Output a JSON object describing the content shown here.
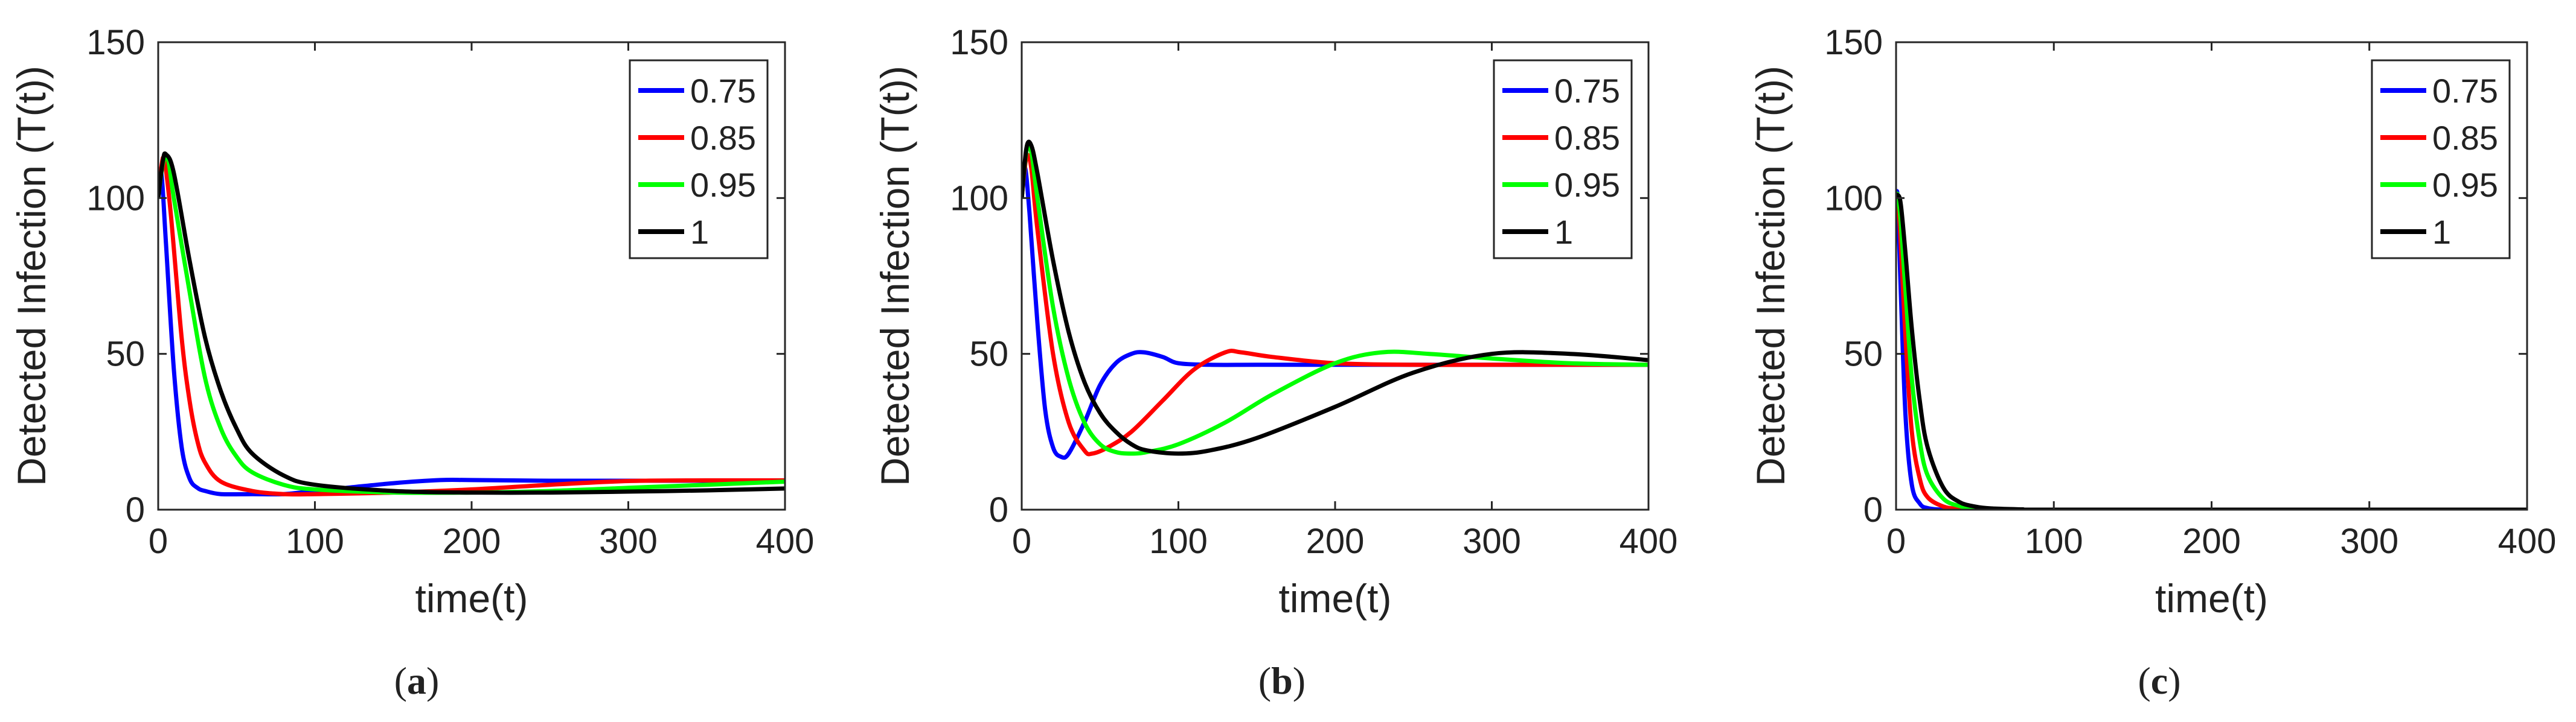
{
  "chart_data": [
    {
      "type": "line",
      "panel_label": "a",
      "caption": {
        "open": "(",
        "letter": "a",
        "close": ")"
      },
      "xlabel": "time(t)",
      "ylabel": "Detected Infection (T(t))",
      "xlim": [
        0,
        400
      ],
      "ylim": [
        0,
        150
      ],
      "xticks": [
        "0",
        "100",
        "200",
        "300",
        "400"
      ],
      "yticks": [
        "0",
        "50",
        "100",
        "150"
      ],
      "legend_position": "top-right",
      "series": [
        {
          "name": "0.75",
          "color": "#0000ff",
          "x": [
            0,
            2,
            5,
            10,
            15,
            20,
            25,
            30,
            40,
            60,
            80,
            100,
            120,
            150,
            180,
            200,
            250,
            300,
            350,
            400
          ],
          "y": [
            100,
            108,
            85,
            45,
            20,
            10,
            7,
            6,
            5,
            5,
            5,
            6,
            7,
            8.5,
            9.5,
            9.5,
            9.3,
            9.3,
            9.3,
            9.3
          ]
        },
        {
          "name": "0.85",
          "color": "#ff0000",
          "x": [
            0,
            2,
            4,
            8,
            15,
            20,
            25,
            30,
            40,
            60,
            80,
            100,
            150,
            200,
            250,
            300,
            350,
            400
          ],
          "y": [
            100,
            110,
            112,
            95,
            55,
            35,
            22,
            15,
            9,
            6,
            5,
            5,
            5.5,
            6.5,
            8,
            9.2,
            9.4,
            9.4
          ]
        },
        {
          "name": "0.95",
          "color": "#00ff00",
          "x": [
            0,
            3,
            6,
            10,
            20,
            30,
            40,
            50,
            60,
            80,
            100,
            150,
            200,
            250,
            300,
            350,
            400
          ],
          "y": [
            100,
            111,
            113,
            100,
            70,
            42,
            26,
            17,
            12,
            8,
            6.5,
            5.5,
            5.5,
            6,
            7,
            8,
            9
          ]
        },
        {
          "name": "1",
          "color": "#000000",
          "x": [
            0,
            3,
            5,
            10,
            20,
            30,
            40,
            50,
            60,
            80,
            100,
            150,
            200,
            250,
            300,
            350,
            400
          ],
          "y": [
            100,
            112,
            114,
            108,
            80,
            55,
            38,
            26,
            18,
            11,
            8,
            6,
            5.5,
            5.5,
            5.8,
            6.2,
            6.8
          ]
        }
      ]
    },
    {
      "type": "line",
      "panel_label": "b",
      "caption": {
        "open": "(",
        "letter": "b",
        "close": ")"
      },
      "xlabel": "time(t)",
      "ylabel": "Detected Infection (T(t))",
      "xlim": [
        0,
        400
      ],
      "ylim": [
        0,
        150
      ],
      "xticks": [
        "0",
        "100",
        "200",
        "300",
        "400"
      ],
      "yticks": [
        "0",
        "50",
        "100",
        "150"
      ],
      "legend_position": "top-right",
      "series": [
        {
          "name": "0.75",
          "color": "#0000ff",
          "x": [
            0,
            2,
            5,
            10,
            15,
            20,
            25,
            30,
            40,
            50,
            60,
            70,
            78,
            90,
            100,
            120,
            150,
            200,
            300,
            400
          ],
          "y": [
            100,
            110,
            95,
            60,
            32,
            20,
            17,
            18,
            28,
            40,
            47,
            50,
            50.5,
            49,
            47,
            46.5,
            46.5,
            46.5,
            46.5,
            46.5
          ]
        },
        {
          "name": "0.85",
          "color": "#ff0000",
          "x": [
            0,
            3,
            6,
            10,
            20,
            30,
            40,
            45,
            55,
            70,
            90,
            110,
            130,
            140,
            160,
            200,
            250,
            300,
            400
          ],
          "y": [
            100,
            113,
            110,
            90,
            50,
            28,
            19,
            18,
            20,
            25,
            35,
            45,
            50.5,
            50.5,
            49,
            47,
            46.5,
            46.5,
            46.5
          ]
        },
        {
          "name": "0.95",
          "color": "#00ff00",
          "x": [
            0,
            3,
            6,
            10,
            20,
            30,
            40,
            50,
            60,
            70,
            80,
            100,
            130,
            160,
            200,
            230,
            260,
            300,
            350,
            400
          ],
          "y": [
            100,
            115,
            115,
            100,
            65,
            42,
            28,
            21,
            18.5,
            18,
            18.5,
            21,
            28,
            37,
            47,
            50.5,
            50,
            48.5,
            47,
            46.5
          ]
        },
        {
          "name": "1",
          "color": "#000000",
          "x": [
            0,
            3,
            6,
            10,
            20,
            30,
            40,
            50,
            60,
            70,
            80,
            100,
            120,
            150,
            200,
            250,
            300,
            350,
            400
          ],
          "y": [
            100,
            116,
            117,
            108,
            80,
            57,
            41,
            31,
            25,
            21,
            19,
            18,
            19,
            23,
            33,
            44,
            50,
            50,
            48
          ]
        }
      ]
    },
    {
      "type": "line",
      "panel_label": "c",
      "caption": {
        "open": "(",
        "letter": "c",
        "close": ")"
      },
      "xlabel": "time(t)",
      "ylabel": "Detected Infection (T(t))",
      "xlim": [
        0,
        400
      ],
      "ylim": [
        0,
        150
      ],
      "xticks": [
        "0",
        "100",
        "200",
        "300",
        "400"
      ],
      "yticks": [
        "0",
        "50",
        "100",
        "150"
      ],
      "legend_position": "top-right",
      "series": [
        {
          "name": "0.75",
          "color": "#0000ff",
          "x": [
            0,
            1,
            3,
            6,
            10,
            15,
            20,
            30,
            50,
            100,
            400
          ],
          "y": [
            100,
            100,
            70,
            30,
            8,
            2,
            0.5,
            0,
            0,
            0,
            0
          ]
        },
        {
          "name": "0.85",
          "color": "#ff0000",
          "x": [
            0,
            1,
            3,
            6,
            10,
            15,
            20,
            30,
            40,
            60,
            100,
            400
          ],
          "y": [
            100,
            100,
            85,
            55,
            25,
            10,
            4,
            1,
            0.3,
            0,
            0,
            0
          ]
        },
        {
          "name": "0.95",
          "color": "#00ff00",
          "x": [
            0,
            1,
            3,
            6,
            10,
            15,
            20,
            30,
            40,
            50,
            70,
            100,
            400
          ],
          "y": [
            100,
            101,
            92,
            70,
            42,
            22,
            11,
            3.5,
            1.2,
            0.5,
            0.1,
            0,
            0
          ]
        },
        {
          "name": "1",
          "color": "#000000",
          "x": [
            0,
            1,
            3,
            6,
            10,
            15,
            20,
            30,
            40,
            50,
            60,
            80,
            100,
            400
          ],
          "y": [
            100,
            101,
            98,
            82,
            58,
            35,
            20,
            7,
            2.5,
            1,
            0.4,
            0.1,
            0,
            0
          ]
        }
      ]
    }
  ]
}
